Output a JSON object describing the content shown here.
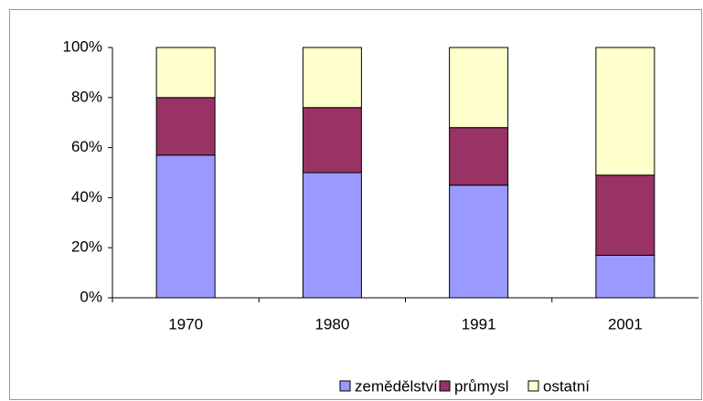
{
  "chart_data": {
    "type": "bar",
    "stacked": true,
    "categories": [
      "1970",
      "1980",
      "1991",
      "2001"
    ],
    "series": [
      {
        "name": "zemědělství",
        "color": "#9999ff",
        "values": [
          57,
          50,
          45,
          17
        ]
      },
      {
        "name": "průmysl",
        "color": "#993366",
        "values": [
          23,
          26,
          23,
          32
        ]
      },
      {
        "name": "ostatní",
        "color": "#ffffcc",
        "values": [
          20,
          24,
          32,
          51
        ]
      }
    ],
    "ylim": [
      0,
      100
    ],
    "yticks": [
      {
        "value": 0,
        "label": "0%"
      },
      {
        "value": 20,
        "label": "20%"
      },
      {
        "value": 40,
        "label": "40%"
      },
      {
        "value": 60,
        "label": "60%"
      },
      {
        "value": 80,
        "label": "80%"
      },
      {
        "value": 100,
        "label": "100%"
      }
    ],
    "legend": "bottom"
  }
}
